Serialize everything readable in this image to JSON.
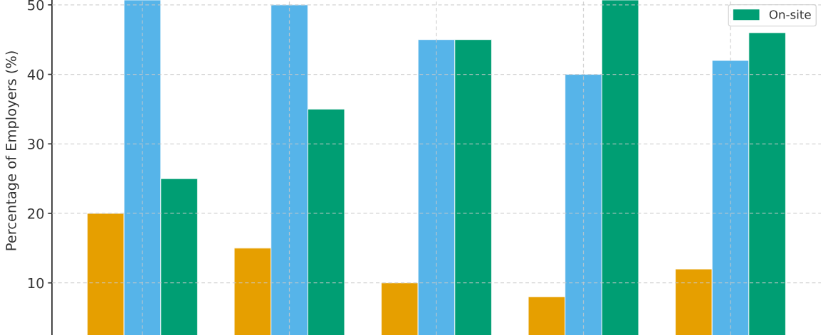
{
  "chart_data": {
    "type": "bar",
    "ylabel": "Percentage of Employers (%)",
    "categories": [
      null,
      null,
      null,
      null,
      null
    ],
    "series": [
      {
        "color": "#e69f00",
        "values": [
          20,
          15,
          10,
          8,
          12
        ]
      },
      {
        "color": "#56b4e9",
        "values": [
          50.7,
          50,
          45,
          40,
          42
        ]
      },
      {
        "name": "On-site",
        "color": "#009e73",
        "values": [
          25,
          35,
          45,
          50.7,
          46
        ]
      }
    ],
    "ylim": [
      2.5,
      50.7
    ],
    "yticks": [
      10,
      20,
      30,
      40,
      50
    ],
    "grid": true,
    "legend": "top right",
    "tick_labels": "y"
  }
}
